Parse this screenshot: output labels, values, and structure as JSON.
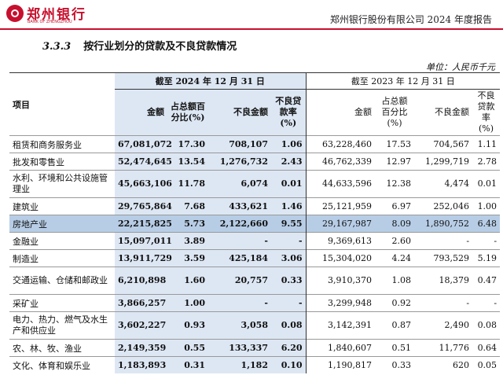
{
  "header": {
    "logo_cn": "郑州银行",
    "logo_en": "BANK OF ZHENGZHOU",
    "doc_title": "郑州银行股份有限公司 2024 年度报告"
  },
  "section": {
    "number": "3.3.3",
    "title": "按行业划分的贷款及不良贷款情况"
  },
  "unit": "单位：人民币千元",
  "table": {
    "item_header": "项目",
    "current_period": "截至 2024 年 12 月 31 日",
    "prior_period": "截至 2023 年 12 月 31 日",
    "cols": {
      "amount": "金额",
      "share": "占总额百分比(%)",
      "npl_amount": "不良金额",
      "npl_ratio": "不良贷款率(%)"
    },
    "rows": [
      {
        "item": "租赁和商务服务业",
        "c_amount": "67,081,072",
        "c_share": "17.30",
        "c_npl": "708,107",
        "c_ratio": "1.06",
        "p_amount": "63,228,460",
        "p_share": "17.53",
        "p_npl": "704,567",
        "p_ratio": "1.11"
      },
      {
        "item": "批发和零售业",
        "c_amount": "52,474,645",
        "c_share": "13.54",
        "c_npl": "1,276,732",
        "c_ratio": "2.43",
        "p_amount": "46,762,339",
        "p_share": "12.97",
        "p_npl": "1,299,719",
        "p_ratio": "2.78"
      },
      {
        "item": "水利、环境和公共设施管理业",
        "c_amount": "45,663,106",
        "c_share": "11.78",
        "c_npl": "6,074",
        "c_ratio": "0.01",
        "p_amount": "44,633,596",
        "p_share": "12.38",
        "p_npl": "4,474",
        "p_ratio": "0.01"
      },
      {
        "item": "建筑业",
        "c_amount": "29,765,864",
        "c_share": "7.68",
        "c_npl": "433,621",
        "c_ratio": "1.46",
        "p_amount": "25,121,959",
        "p_share": "6.97",
        "p_npl": "252,046",
        "p_ratio": "1.00"
      },
      {
        "item": "房地产业",
        "c_amount": "22,215,825",
        "c_share": "5.73",
        "c_npl": "2,122,660",
        "c_ratio": "9.55",
        "p_amount": "29,167,987",
        "p_share": "8.09",
        "p_npl": "1,890,752",
        "p_ratio": "6.48"
      },
      {
        "item": "金融业",
        "c_amount": "15,097,011",
        "c_share": "3.89",
        "c_npl": "-",
        "c_ratio": "-",
        "p_amount": "9,369,613",
        "p_share": "2.60",
        "p_npl": "-",
        "p_ratio": "-"
      },
      {
        "item": "制造业",
        "c_amount": "13,911,729",
        "c_share": "3.59",
        "c_npl": "425,184",
        "c_ratio": "3.06",
        "p_amount": "15,304,020",
        "p_share": "4.24",
        "p_npl": "793,529",
        "p_ratio": "5.19"
      },
      {
        "item": "交通运输、仓储和邮政业",
        "c_amount": "6,210,898",
        "c_share": "1.60",
        "c_npl": "20,757",
        "c_ratio": "0.33",
        "p_amount": "3,910,370",
        "p_share": "1.08",
        "p_npl": "18,379",
        "p_ratio": "0.47"
      },
      {
        "item": "采矿业",
        "c_amount": "3,866,257",
        "c_share": "1.00",
        "c_npl": "-",
        "c_ratio": "-",
        "p_amount": "3,299,948",
        "p_share": "0.92",
        "p_npl": "-",
        "p_ratio": "-"
      },
      {
        "item": "电力、热力、燃气及水生产和供应业",
        "c_amount": "3,602,227",
        "c_share": "0.93",
        "c_npl": "3,058",
        "c_ratio": "0.08",
        "p_amount": "3,142,391",
        "p_share": "0.87",
        "p_npl": "2,490",
        "p_ratio": "0.08"
      },
      {
        "item": "农、林、牧、渔业",
        "c_amount": "2,149,359",
        "c_share": "0.55",
        "c_npl": "133,337",
        "c_ratio": "6.20",
        "p_amount": "1,840,607",
        "p_share": "0.51",
        "p_npl": "11,776",
        "p_ratio": "0.64"
      },
      {
        "item": "文化、体育和娱乐业",
        "c_amount": "1,183,893",
        "c_share": "0.31",
        "c_npl": "1,182",
        "c_ratio": "0.10",
        "p_amount": "1,190,817",
        "p_share": "0.33",
        "p_npl": "620",
        "p_ratio": "0.05"
      }
    ]
  }
}
